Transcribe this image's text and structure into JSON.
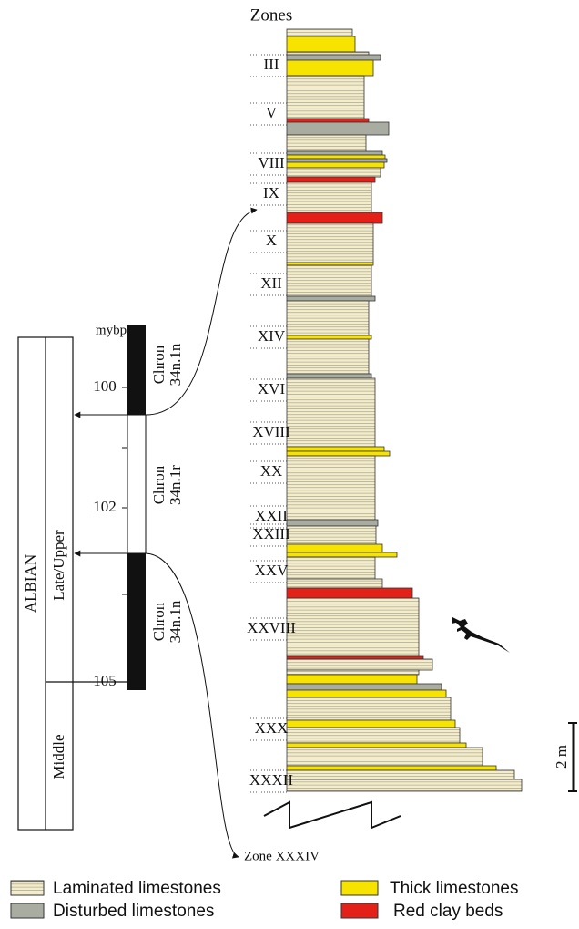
{
  "zones_header": "Zones",
  "zones": [
    "III",
    "V",
    "VIII",
    "IX",
    "X",
    "XII",
    "XIV",
    "XVI",
    "XVIII",
    "XX",
    "XXII",
    "XXIII",
    "XXV",
    "XXVIII",
    "XXX",
    "XXXII"
  ],
  "timescale": {
    "unit": "mybp",
    "ages": [
      100,
      102,
      105
    ],
    "stage": "ALBIAN",
    "substages": [
      "Late/Upper",
      "Middle"
    ],
    "chrons": [
      [
        "Chron",
        "34n.1n"
      ],
      [
        "Chron",
        "34n.1r"
      ],
      [
        "Chron",
        "34n.1n"
      ]
    ]
  },
  "arrow_label": "Zone XXXIV",
  "scale_label": "2 m",
  "legend": [
    "Laminated limestones",
    "Thick limestones",
    "Disturbed limestones",
    "Red clay beds"
  ]
}
